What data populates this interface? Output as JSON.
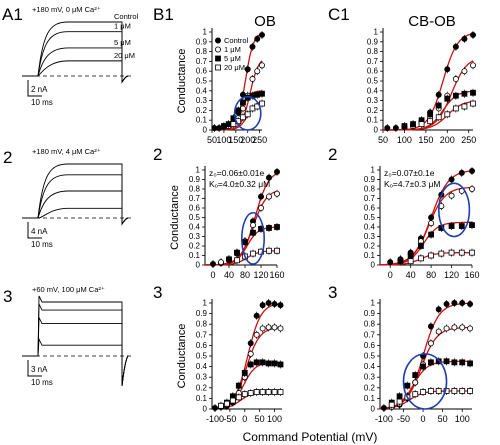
{
  "panel_labels": {
    "a1": "A1",
    "b1": "B1",
    "c1": "C1",
    "row2a": "2",
    "row2b": "2",
    "row2c": "2",
    "row3a": "3",
    "row3b": "3",
    "row3c": "3"
  },
  "column_titles": {
    "ob": "OB",
    "cbob": "CB-OB"
  },
  "shared_xlabel": "Command Potential (mV)",
  "traces": [
    {
      "condition": "+180 mV, 0 μM Ca²⁺",
      "trace_labels": [
        "Control",
        "1 μM",
        "5 μM",
        "20 μM"
      ],
      "scale_current": "2 nA",
      "scale_time": "10 ms",
      "levels": [
        1.0,
        0.82,
        0.52,
        0.28
      ]
    },
    {
      "condition": "+180 mV, 4 μM Ca²⁺",
      "trace_labels": [],
      "scale_current": "4 nA",
      "scale_time": "10 ms",
      "levels": [
        1.0,
        0.8,
        0.5,
        0.18
      ]
    },
    {
      "condition": "+60 mV, 100 μM Ca²⁺",
      "trace_labels": [],
      "scale_current": "3 nA",
      "scale_time": "10 ms",
      "levels": [
        1.0,
        0.85,
        0.6,
        0.2
      ]
    }
  ],
  "legend": [
    "Control",
    "1 μM",
    "5 μM",
    "20 μM"
  ],
  "colors": {
    "fit": "#cc1111",
    "ellipse": "#1f3fb0",
    "marker": "#000000"
  },
  "chart_data": [
    {
      "id": "B1-1",
      "type": "scatter",
      "ylabel": "Conductance",
      "xlim": [
        50,
        260
      ],
      "ylim": [
        0,
        1
      ],
      "xticks": [
        50,
        100,
        150,
        200,
        250
      ],
      "yticks": [
        0,
        0.1,
        0.2,
        0.3,
        0.4,
        0.5,
        0.6,
        0.7,
        0.8,
        0.9,
        1
      ],
      "ellipse": {
        "cx": 200,
        "cy": 0.17,
        "rx": 55,
        "ry": 0.17
      },
      "series": [
        {
          "name": "Control",
          "marker": "filled-circle",
          "vmid": 190,
          "slope": 17,
          "gmax": 1.0,
          "x": [
            60,
            80,
            100,
            120,
            140,
            160,
            180,
            200,
            220,
            240,
            260
          ],
          "y": [
            0.02,
            0.02,
            0.03,
            0.05,
            0.09,
            0.18,
            0.36,
            0.62,
            0.85,
            0.93,
            0.97
          ]
        },
        {
          "name": "1 μM",
          "marker": "open-circle",
          "vmid": 210,
          "slope": 18,
          "gmax": 0.75,
          "x": [
            100,
            120,
            140,
            160,
            180,
            200,
            220,
            240,
            260
          ],
          "y": [
            0.03,
            0.04,
            0.07,
            0.12,
            0.22,
            0.35,
            0.52,
            0.6,
            0.66
          ]
        },
        {
          "name": "5 μM",
          "marker": "filled-square",
          "vmid": 175,
          "slope": 16,
          "gmax": 0.4,
          "x": [
            100,
            120,
            140,
            160,
            180,
            200,
            220,
            240,
            260
          ],
          "y": [
            0.04,
            0.06,
            0.12,
            0.2,
            0.28,
            0.33,
            0.35,
            0.36,
            0.37
          ]
        },
        {
          "name": "20 μM",
          "marker": "open-square",
          "vmid": 200,
          "slope": 18,
          "gmax": 0.3,
          "x": [
            140,
            160,
            180,
            200,
            220,
            240,
            260
          ],
          "y": [
            0.06,
            0.09,
            0.13,
            0.16,
            0.22,
            0.24,
            0.27
          ]
        }
      ]
    },
    {
      "id": "C1-1",
      "type": "scatter",
      "ylabel": "",
      "xlim": [
        50,
        260
      ],
      "ylim": [
        0,
        1
      ],
      "xticks": [
        50,
        100,
        150,
        200,
        250
      ],
      "yticks": [
        0,
        0.1,
        0.2,
        0.3,
        0.4,
        0.5,
        0.6,
        0.7,
        0.8,
        0.9,
        1
      ],
      "series": [
        {
          "name": "Control",
          "marker": "filled-circle",
          "vmid": 190,
          "slope": 17,
          "gmax": 1.0,
          "x": [
            60,
            80,
            100,
            120,
            140,
            160,
            180,
            200,
            220,
            240,
            260
          ],
          "y": [
            0.02,
            0.02,
            0.03,
            0.05,
            0.09,
            0.18,
            0.36,
            0.62,
            0.85,
            0.93,
            0.97
          ]
        },
        {
          "name": "1 μM",
          "marker": "open-circle",
          "vmid": 210,
          "slope": 18,
          "gmax": 0.75,
          "x": [
            100,
            120,
            140,
            160,
            180,
            200,
            220,
            240,
            260
          ],
          "y": [
            0.03,
            0.04,
            0.07,
            0.12,
            0.22,
            0.35,
            0.52,
            0.6,
            0.66
          ]
        },
        {
          "name": "5 μM",
          "marker": "filled-square",
          "vmid": 190,
          "slope": 16,
          "gmax": 0.4,
          "x": [
            100,
            120,
            140,
            160,
            180,
            200,
            220,
            240,
            260
          ],
          "y": [
            0.04,
            0.06,
            0.1,
            0.16,
            0.25,
            0.32,
            0.35,
            0.37,
            0.38
          ]
        },
        {
          "name": "20 μM",
          "marker": "open-square",
          "vmid": 200,
          "slope": 18,
          "gmax": 0.3,
          "x": [
            140,
            160,
            180,
            200,
            220,
            240,
            260
          ],
          "y": [
            0.06,
            0.09,
            0.13,
            0.16,
            0.22,
            0.24,
            0.27
          ]
        }
      ]
    },
    {
      "id": "B1-2",
      "type": "scatter",
      "ylabel": "Conductance",
      "xlim": [
        -20,
        160
      ],
      "ylim": [
        0,
        1
      ],
      "xticks": [
        0,
        40,
        80,
        120,
        160
      ],
      "yticks": [
        0,
        0.1,
        0.2,
        0.3,
        0.4,
        0.5,
        0.6,
        0.7,
        0.8,
        0.9,
        1
      ],
      "annotation": [
        "z₀=0.06±0.01e",
        "Kₒ=4.0±0.32 μM"
      ],
      "ellipse": {
        "cx": 100,
        "cy": 0.28,
        "rx": 28,
        "ry": 0.27
      },
      "series": [
        {
          "name": "Control",
          "marker": "filled-circle",
          "vmid": 105,
          "slope": 17,
          "gmax": 1.0,
          "x": [
            0,
            20,
            40,
            60,
            80,
            100,
            120,
            140,
            160
          ],
          "y": [
            0.01,
            0.02,
            0.05,
            0.12,
            0.25,
            0.46,
            0.72,
            0.92,
            0.98
          ]
        },
        {
          "name": "1 μM",
          "marker": "open-circle",
          "vmid": 100,
          "slope": 17,
          "gmax": 0.8,
          "x": [
            20,
            40,
            60,
            80,
            100,
            120,
            140,
            160
          ],
          "y": [
            0.03,
            0.06,
            0.13,
            0.25,
            0.42,
            0.6,
            0.72,
            0.75
          ]
        },
        {
          "name": "5 μM",
          "marker": "filled-square",
          "vmid": 85,
          "slope": 14,
          "gmax": 0.4,
          "x": [
            40,
            60,
            80,
            100,
            120,
            140,
            160
          ],
          "y": [
            0.06,
            0.13,
            0.24,
            0.34,
            0.38,
            0.39,
            0.4
          ]
        },
        {
          "name": "20 μM",
          "marker": "open-square",
          "vmid": 85,
          "slope": 15,
          "gmax": 0.15,
          "x": [
            60,
            80,
            100,
            120,
            140,
            160
          ],
          "y": [
            0.05,
            0.09,
            0.12,
            0.14,
            0.15,
            0.15
          ]
        }
      ]
    },
    {
      "id": "C1-2",
      "type": "scatter",
      "ylabel": "",
      "xlim": [
        -20,
        160
      ],
      "ylim": [
        0,
        1
      ],
      "xticks": [
        0,
        40,
        80,
        120,
        160
      ],
      "yticks": [
        0,
        0.1,
        0.2,
        0.3,
        0.4,
        0.5,
        0.6,
        0.7,
        0.8,
        0.9,
        1
      ],
      "annotation": [
        "z₀=0.07±0.1e",
        "Kₒ=4.7±0.3 μM"
      ],
      "ellipse": {
        "cx": 125,
        "cy": 0.58,
        "rx": 30,
        "ry": 0.28
      },
      "series": [
        {
          "name": "Control",
          "marker": "filled-circle",
          "vmid": 80,
          "slope": 17,
          "gmax": 1.0,
          "x": [
            0,
            20,
            40,
            60,
            80,
            100,
            120,
            140,
            160
          ],
          "y": [
            0.03,
            0.06,
            0.13,
            0.28,
            0.5,
            0.74,
            0.9,
            0.97,
            0.99
          ]
        },
        {
          "name": "1 μM",
          "marker": "open-circle",
          "vmid": 75,
          "slope": 16,
          "gmax": 0.82,
          "x": [
            20,
            40,
            60,
            80,
            100,
            120,
            140,
            160
          ],
          "y": [
            0.05,
            0.11,
            0.25,
            0.44,
            0.62,
            0.73,
            0.78,
            0.8
          ]
        },
        {
          "name": "5 μM",
          "marker": "filled-square",
          "vmid": 65,
          "slope": 14,
          "gmax": 0.45,
          "x": [
            20,
            40,
            60,
            80,
            100,
            120,
            140,
            160
          ],
          "y": [
            0.04,
            0.1,
            0.2,
            0.32,
            0.39,
            0.41,
            0.41,
            0.42
          ]
        },
        {
          "name": "20 μM",
          "marker": "open-square",
          "vmid": 60,
          "slope": 14,
          "gmax": 0.13,
          "x": [
            40,
            60,
            80,
            100,
            120,
            140,
            160
          ],
          "y": [
            0.04,
            0.07,
            0.1,
            0.12,
            0.13,
            0.13,
            0.13
          ]
        }
      ]
    },
    {
      "id": "B1-3",
      "type": "scatter",
      "ylabel": "Conductance",
      "xlim": [
        -110,
        125
      ],
      "ylim": [
        0,
        1
      ],
      "xticks": [
        -100,
        -50,
        0,
        50,
        100
      ],
      "yticks": [
        0,
        0.1,
        0.2,
        0.3,
        0.4,
        0.5,
        0.6,
        0.7,
        0.8,
        0.9,
        1
      ],
      "series": [
        {
          "name": "Control",
          "marker": "filled-circle",
          "vmid": 10,
          "slope": 22,
          "gmax": 1.0,
          "x": [
            -100,
            -80,
            -60,
            -40,
            -20,
            0,
            20,
            40,
            60,
            80,
            100,
            120
          ],
          "y": [
            0.01,
            0.02,
            0.03,
            0.06,
            0.14,
            0.3,
            0.62,
            0.88,
            0.98,
            1.0,
            0.99,
            0.98
          ]
        },
        {
          "name": "1 μM",
          "marker": "open-circle",
          "vmid": 5,
          "slope": 22,
          "gmax": 0.77,
          "x": [
            -80,
            -60,
            -40,
            -20,
            0,
            20,
            40,
            60,
            80,
            100,
            120
          ],
          "y": [
            0.02,
            0.04,
            0.08,
            0.15,
            0.3,
            0.52,
            0.7,
            0.76,
            0.77,
            0.77,
            0.76
          ]
        },
        {
          "name": "5 μM",
          "marker": "filled-square",
          "vmid": -5,
          "slope": 20,
          "gmax": 0.44,
          "x": [
            -80,
            -60,
            -40,
            -20,
            0,
            20,
            40,
            60,
            80,
            100,
            120
          ],
          "y": [
            0.03,
            0.06,
            0.12,
            0.22,
            0.34,
            0.42,
            0.44,
            0.44,
            0.43,
            0.43,
            0.42
          ]
        },
        {
          "name": "20 μM",
          "marker": "open-square",
          "vmid": -15,
          "slope": 20,
          "gmax": 0.16,
          "x": [
            -80,
            -60,
            -40,
            -20,
            0,
            20,
            40,
            60,
            80,
            100,
            120
          ],
          "y": [
            0.03,
            0.05,
            0.08,
            0.11,
            0.14,
            0.15,
            0.16,
            0.16,
            0.16,
            0.16,
            0.16
          ]
        }
      ]
    },
    {
      "id": "C1-3",
      "type": "scatter",
      "ylabel": "",
      "xlim": [
        -110,
        125
      ],
      "ylim": [
        0,
        1
      ],
      "xticks": [
        -100,
        -50,
        0,
        50,
        100
      ],
      "yticks": [
        0,
        0.1,
        0.2,
        0.3,
        0.4,
        0.5,
        0.6,
        0.7,
        0.8,
        0.9,
        1
      ],
      "ellipse": {
        "cx": 5,
        "cy": 0.26,
        "rx": 55,
        "ry": 0.26
      },
      "series": [
        {
          "name": "Control",
          "marker": "filled-circle",
          "vmid": 0,
          "slope": 20,
          "gmax": 1.0,
          "x": [
            -100,
            -80,
            -60,
            -40,
            -20,
            0,
            20,
            40,
            60,
            80,
            100,
            120
          ],
          "y": [
            0.01,
            0.02,
            0.04,
            0.1,
            0.25,
            0.5,
            0.78,
            0.94,
            0.99,
            1.0,
            1.0,
            0.99
          ]
        },
        {
          "name": "1 μM",
          "marker": "open-circle",
          "vmid": -5,
          "slope": 20,
          "gmax": 0.77,
          "x": [
            -80,
            -60,
            -40,
            -20,
            0,
            20,
            40,
            60,
            80,
            100,
            120
          ],
          "y": [
            0.02,
            0.05,
            0.12,
            0.25,
            0.42,
            0.62,
            0.73,
            0.76,
            0.77,
            0.77,
            0.76
          ]
        },
        {
          "name": "5 μM",
          "marker": "filled-square",
          "vmid": -25,
          "slope": 18,
          "gmax": 0.45,
          "x": [
            -80,
            -60,
            -40,
            -20,
            0,
            20,
            40,
            60,
            80,
            100,
            120
          ],
          "y": [
            0.06,
            0.12,
            0.22,
            0.32,
            0.4,
            0.44,
            0.45,
            0.45,
            0.44,
            0.44,
            0.43
          ]
        },
        {
          "name": "20 μM",
          "marker": "open-square",
          "vmid": -35,
          "slope": 18,
          "gmax": 0.17,
          "x": [
            -80,
            -60,
            -40,
            -20,
            0,
            20,
            40,
            60,
            80,
            100,
            120
          ],
          "y": [
            0.04,
            0.07,
            0.11,
            0.14,
            0.16,
            0.17,
            0.17,
            0.17,
            0.17,
            0.17,
            0.17
          ]
        }
      ]
    }
  ]
}
